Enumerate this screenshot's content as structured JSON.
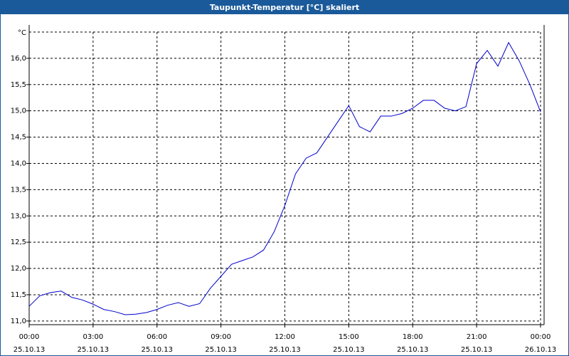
{
  "chart_data": {
    "type": "line",
    "title": "Taupunkt-Temperatur [°C] skaliert",
    "y_unit": "°C",
    "x": [
      0,
      0.5,
      1,
      1.5,
      2,
      2.5,
      3,
      3.5,
      4,
      4.5,
      5,
      5.5,
      6,
      6.5,
      7,
      7.5,
      8,
      8.5,
      9,
      9.5,
      10,
      10.5,
      11,
      11.5,
      12,
      12.5,
      13,
      13.5,
      14,
      14.5,
      15,
      15.5,
      16,
      16.5,
      17,
      17.5,
      18,
      18.5,
      19,
      19.5,
      20,
      20.5,
      21,
      21.5,
      22,
      22.5,
      23,
      23.5,
      24
    ],
    "series": [
      {
        "name": "Taupunkt-Temperatur",
        "color": "#0000cc",
        "values": [
          11.28,
          11.48,
          11.54,
          11.57,
          11.45,
          11.4,
          11.32,
          11.22,
          11.18,
          11.12,
          11.13,
          11.16,
          11.22,
          11.3,
          11.35,
          11.28,
          11.33,
          11.62,
          11.85,
          12.08,
          12.15,
          12.22,
          12.35,
          12.7,
          13.2,
          13.8,
          14.1,
          14.2,
          14.5,
          14.8,
          15.1,
          14.7,
          14.6,
          14.9,
          14.9,
          14.95,
          15.05,
          15.2,
          15.2,
          15.05,
          15.0,
          15.08,
          15.9,
          16.15,
          15.85,
          16.3,
          15.95,
          15.5,
          14.98
        ]
      }
    ],
    "xlim": [
      0,
      24
    ],
    "xticks": [
      {
        "value": 0,
        "label": "00:00"
      },
      {
        "value": 3,
        "label": "03:00"
      },
      {
        "value": 6,
        "label": "06:00"
      },
      {
        "value": 9,
        "label": "09:00"
      },
      {
        "value": 12,
        "label": "12:00"
      },
      {
        "value": 15,
        "label": "15:00"
      },
      {
        "value": 18,
        "label": "18:00"
      },
      {
        "value": 21,
        "label": "21:00"
      },
      {
        "value": 24,
        "label": "00:00"
      }
    ],
    "xtick_dates": [
      "25.10.13",
      "25.10.13",
      "25.10.13",
      "25.10.13",
      "25.10.13",
      "25.10.13",
      "25.10.13",
      "25.10.13",
      "26.10.13"
    ],
    "ylim": [
      10.93,
      16.5
    ],
    "yticks": [
      {
        "value": 11,
        "label": "11,0"
      },
      {
        "value": 11.5,
        "label": "11,5"
      },
      {
        "value": 12,
        "label": "12,0"
      },
      {
        "value": 12.5,
        "label": "12,5"
      },
      {
        "value": 13,
        "label": "13,0"
      },
      {
        "value": 13.5,
        "label": "13,5"
      },
      {
        "value": 14,
        "label": "14,0"
      },
      {
        "value": 14.5,
        "label": "14,5"
      },
      {
        "value": 15,
        "label": "15,0"
      },
      {
        "value": 15.5,
        "label": "15,5"
      },
      {
        "value": 16,
        "label": "16,0"
      }
    ],
    "grid": true
  }
}
